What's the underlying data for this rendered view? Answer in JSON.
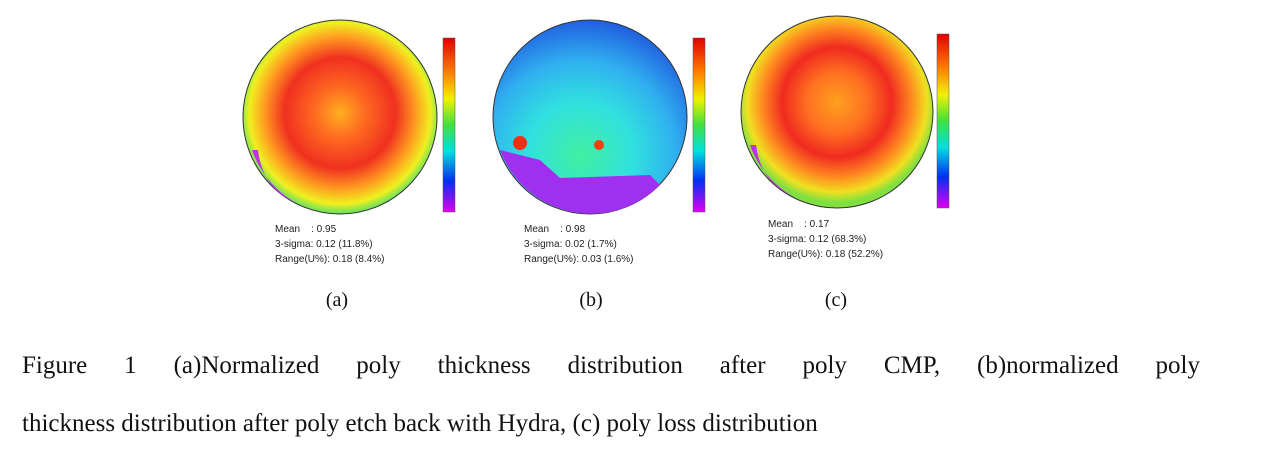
{
  "panels": [
    {
      "label": "(a)",
      "stats": [
        "Mean    : 0.95",
        "3-sigma: 0.12 (11.8%)",
        "Range(U%): 0.18 (8.4%)"
      ]
    },
    {
      "label": "(b)",
      "stats": [
        "Mean    : 0.98",
        "3-sigma: 0.02 (1.7%)",
        "Range(U%): 0.03 (1.6%)"
      ]
    },
    {
      "label": "(c)",
      "stats": [
        "Mean    : 0.17",
        "3-sigma: 0.12 (68.3%)",
        "Range(U%): 0.18 (52.2%)"
      ]
    }
  ],
  "caption": {
    "lines": [
      "Figure 1 (a)Normalized poly thickness distribution after poly CMP, (b)normalized poly",
      "thickness distribution after poly etch back with Hydra, (c) poly loss distribution"
    ]
  }
}
